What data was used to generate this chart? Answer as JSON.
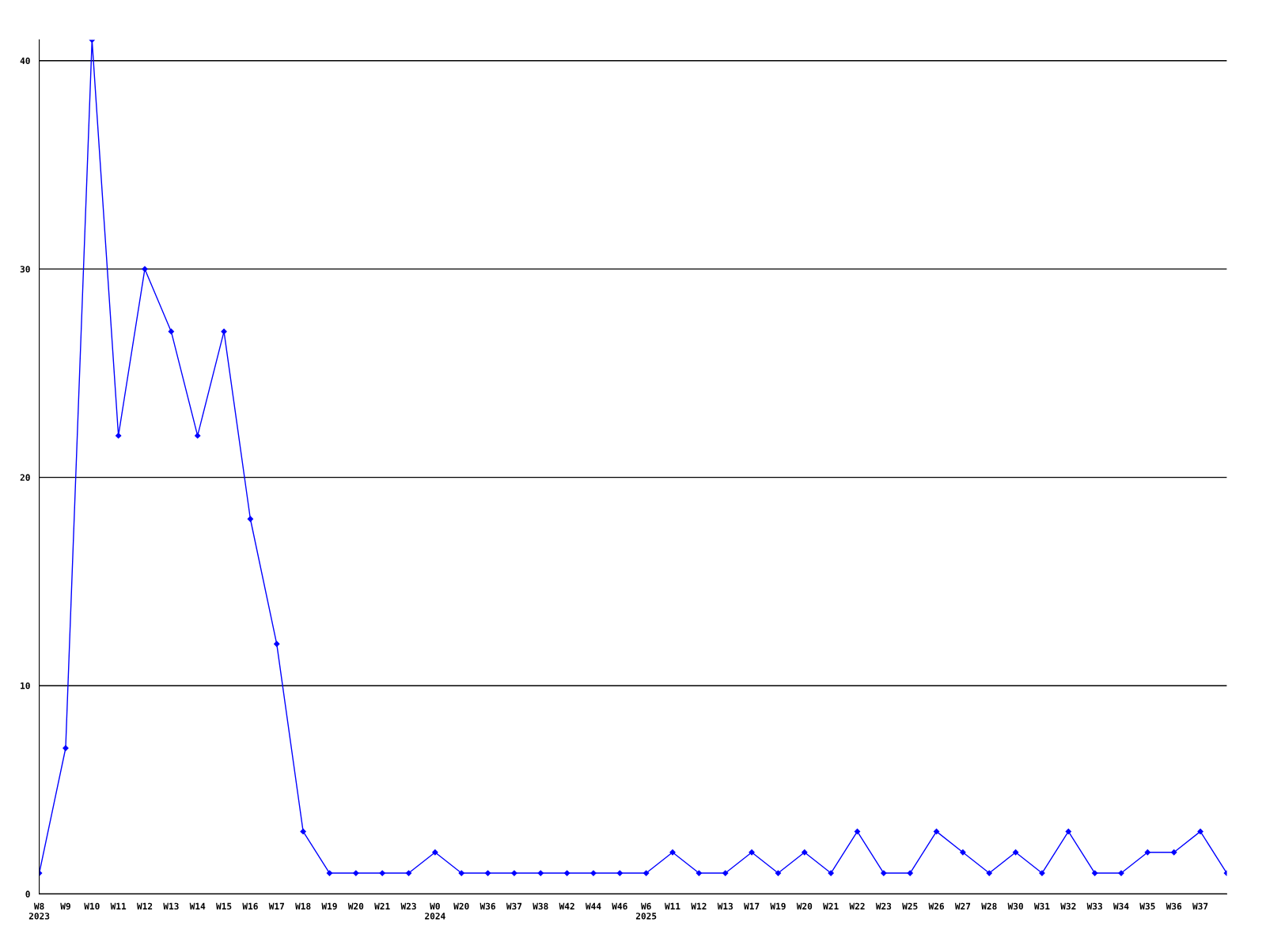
{
  "chart_data": {
    "type": "line",
    "categories": [
      "W8\n2023",
      "W9",
      "W10",
      "W11",
      "W12",
      "W13",
      "W14",
      "W15",
      "W16",
      "W17",
      "W18",
      "W19",
      "W20",
      "W21",
      "W23",
      "W0\n2024",
      "W20",
      "W36",
      "W37",
      "W38",
      "W42",
      "W44",
      "W46",
      "W6\n2025",
      "W11",
      "W12",
      "W13",
      "W17",
      "W19",
      "W20",
      "W21",
      "W22",
      "W23",
      "W25",
      "W26",
      "W27",
      "W28",
      "W30",
      "W31",
      "W32",
      "W33",
      "W34",
      "W35",
      "W36",
      "W37",
      null
    ],
    "series": [
      {
        "color": "#0000ff",
        "values": [
          1,
          7,
          41,
          22,
          30,
          27,
          22,
          27,
          18,
          12,
          3,
          1,
          1,
          1,
          1,
          2,
          1,
          1,
          1,
          1,
          1,
          1,
          1,
          1,
          2,
          1,
          1,
          2,
          1,
          2,
          1,
          3,
          1,
          1,
          3,
          2,
          1,
          2,
          1,
          3,
          1,
          1,
          2,
          2,
          3,
          1
        ]
      }
    ],
    "ylim": [
      0,
      41
    ],
    "yticks": [
      0,
      10,
      20,
      30,
      40
    ],
    "grid": "y",
    "marker": "diamond",
    "line_style": "solid"
  }
}
